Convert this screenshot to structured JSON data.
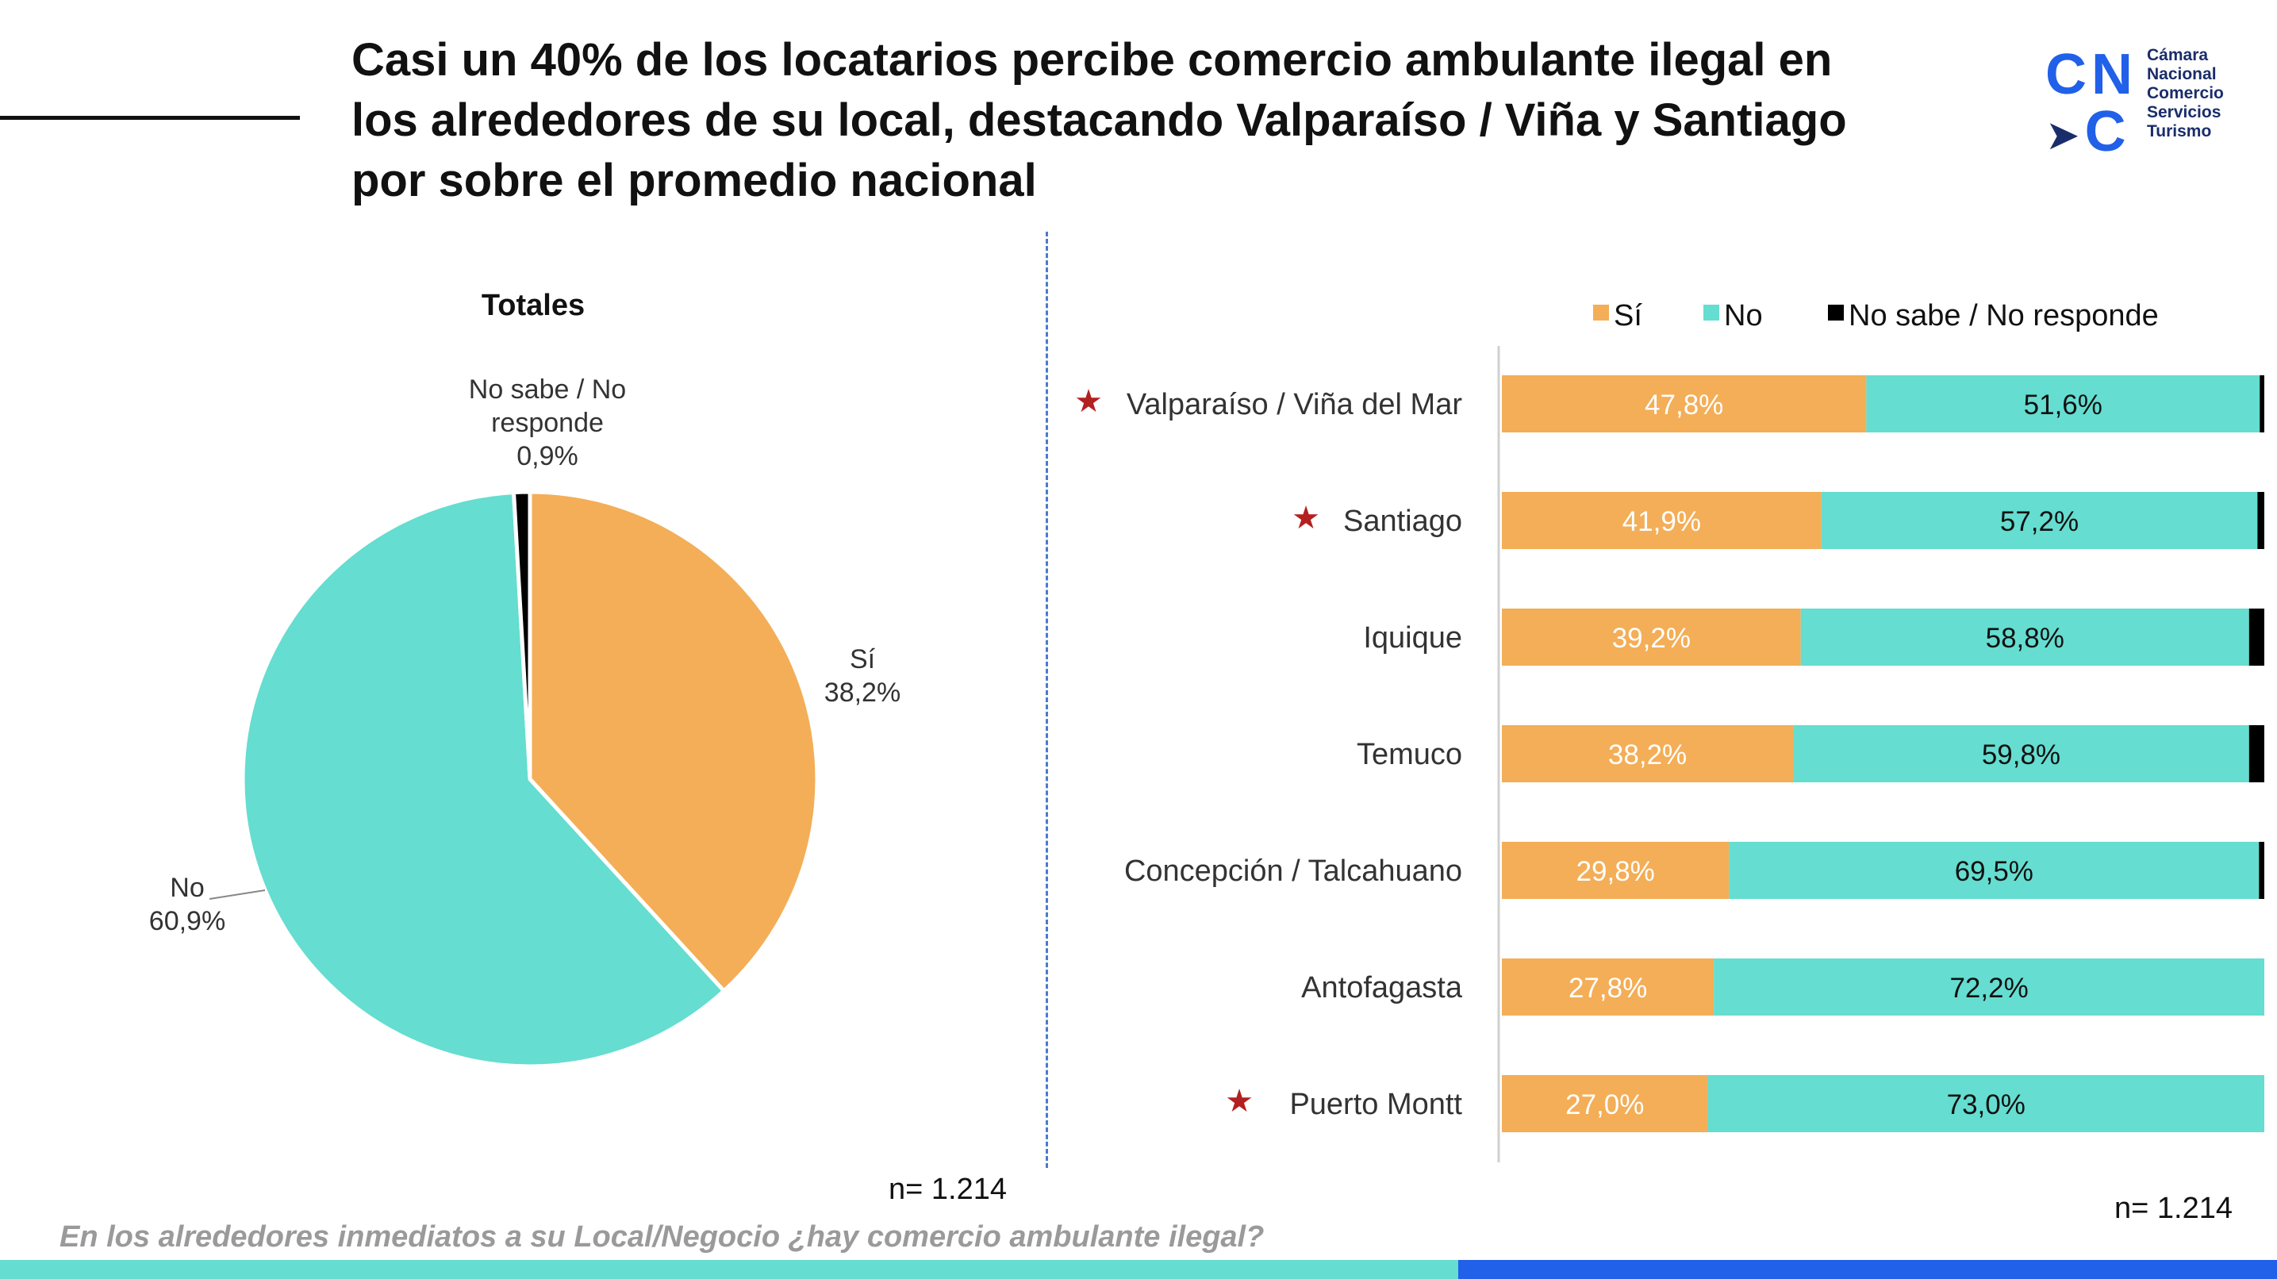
{
  "header": {
    "title": "Casi un 40% de los locatarios percibe comercio ambulante ilegal en los alrededores de su local, destacando Valparaíso / Viña y Santiago por sobre el promedio nacional"
  },
  "logo": {
    "letters": "CN C",
    "lines": [
      "Cámara",
      "Nacional",
      "Comercio",
      "Servicios",
      "Turismo"
    ]
  },
  "footer": {
    "question": "En los alrededores inmediatos a su Local/Negocio ¿hay comercio ambulante ilegal?",
    "n_left": "n= 1.214",
    "n_right": "n= 1.214"
  },
  "colors": {
    "si": "#f3ae57",
    "no": "#65ddd0",
    "ns": "#000000",
    "star": "#b32020",
    "accent_blue": "#2160e8"
  },
  "chart_data": [
    {
      "type": "pie",
      "title": "Totales",
      "slices": [
        {
          "label": "Sí",
          "value": 38.2,
          "value_label": "38,2%",
          "color": "#f3ae57"
        },
        {
          "label": "No",
          "value": 60.9,
          "value_label": "60,9%",
          "color": "#65ddd0"
        },
        {
          "label": "No sabe / No responde",
          "value": 0.9,
          "value_label": "0,9%",
          "color": "#000000"
        }
      ]
    },
    {
      "type": "bar",
      "orientation": "horizontal",
      "stacked": true,
      "legend": [
        "Sí",
        "No",
        "No sabe / No responde"
      ],
      "legend_position": "top-right",
      "categories": [
        "Valparaíso / Viña del Mar",
        "Santiago",
        "Iquique",
        "Temuco",
        "Concepción / Talcahuano",
        "Antofagasta",
        "Puerto Montt"
      ],
      "starred": [
        true,
        true,
        false,
        false,
        false,
        false,
        true
      ],
      "series": [
        {
          "name": "Sí",
          "values": [
            47.8,
            41.9,
            39.2,
            38.2,
            29.8,
            27.8,
            27.0
          ],
          "labels": [
            "47,8%",
            "41,9%",
            "39,2%",
            "38,2%",
            "29,8%",
            "27,8%",
            "27,0%"
          ],
          "color": "#f3ae57",
          "label_color": "#ffffff"
        },
        {
          "name": "No",
          "values": [
            51.6,
            57.2,
            58.8,
            59.8,
            69.5,
            72.2,
            73.0
          ],
          "labels": [
            "51,6%",
            "57,2%",
            "58,8%",
            "59,8%",
            "69,5%",
            "72,2%",
            "73,0%"
          ],
          "color": "#65ddd0",
          "label_color": "#111111"
        },
        {
          "name": "No sabe / No responde",
          "values": [
            0.6,
            0.9,
            2.0,
            2.0,
            0.7,
            0.0,
            0.0
          ],
          "color": "#000000"
        }
      ],
      "xlim": [
        0,
        100
      ]
    }
  ]
}
